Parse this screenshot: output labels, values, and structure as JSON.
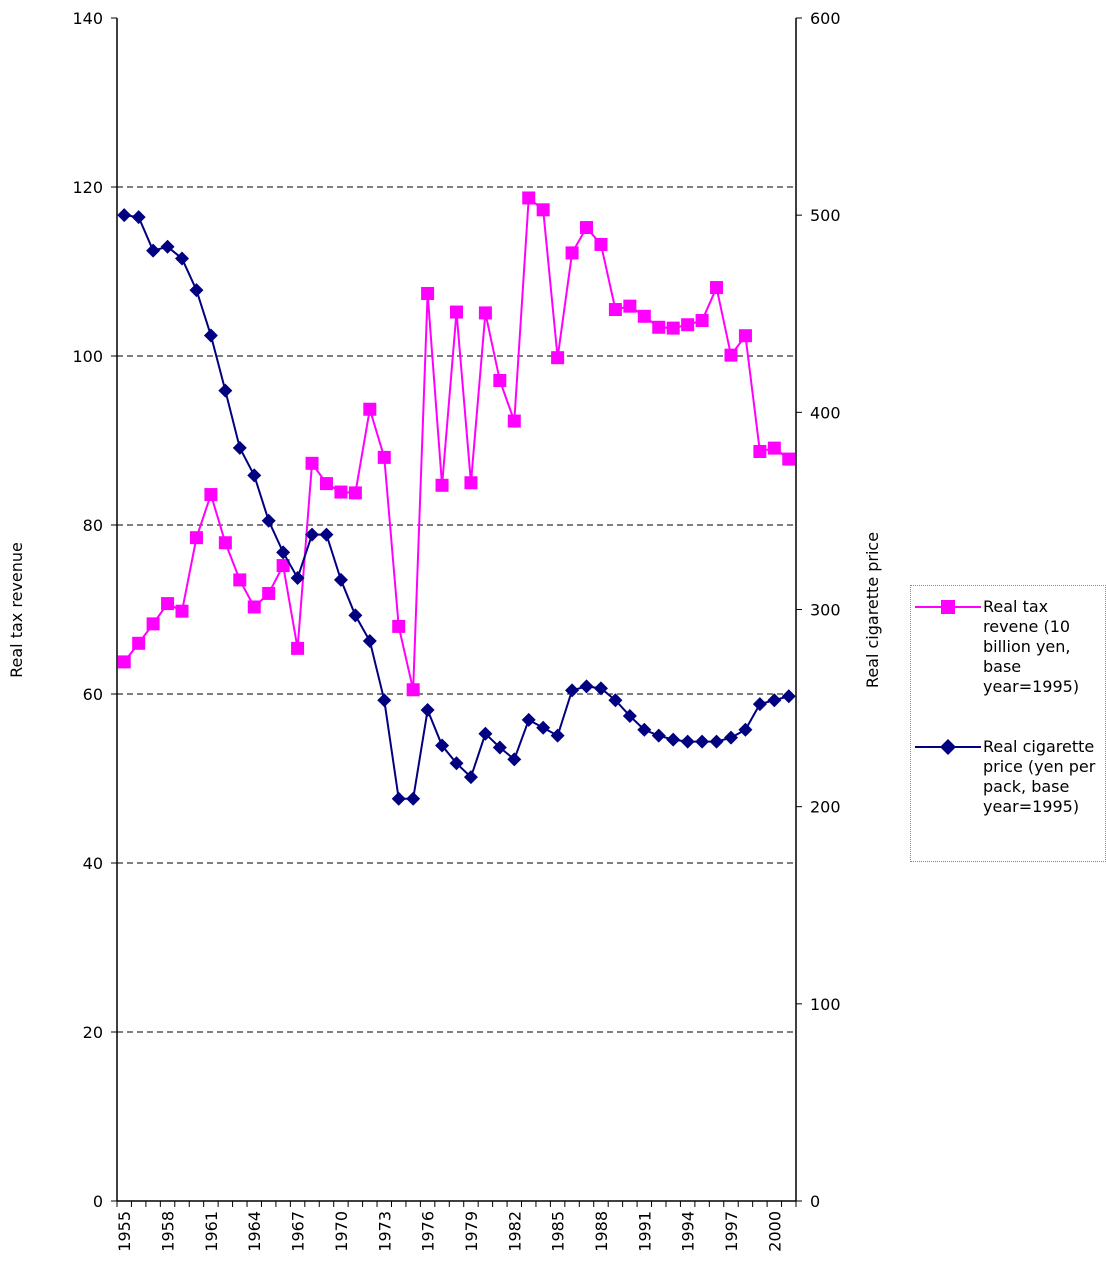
{
  "chart_data": {
    "type": "line",
    "x": [
      1955,
      1956,
      1957,
      1958,
      1959,
      1960,
      1961,
      1962,
      1963,
      1964,
      1965,
      1966,
      1967,
      1968,
      1969,
      1970,
      1971,
      1972,
      1973,
      1974,
      1975,
      1976,
      1977,
      1978,
      1979,
      1980,
      1981,
      1982,
      1983,
      1984,
      1985,
      1986,
      1987,
      1988,
      1989,
      1990,
      1991,
      1992,
      1993,
      1994,
      1995,
      1996,
      1997,
      1998,
      1999,
      2000,
      2001
    ],
    "x_tick_labels": [
      "1955",
      "1958",
      "1961",
      "1964",
      "1967",
      "1970",
      "1973",
      "1976",
      "1979",
      "1982",
      "1985",
      "1988",
      "1991",
      "1994",
      "1997",
      "2000"
    ],
    "ylabel_left": "Real tax revenue",
    "ylabel_right": "Real cigarette price",
    "ylim_left": [
      0,
      140
    ],
    "ylim_right": [
      0,
      600
    ],
    "yticks_left": [
      "0",
      "20",
      "40",
      "60",
      "80",
      "100",
      "120",
      "140"
    ],
    "yticks_right": [
      "0",
      "100",
      "200",
      "300",
      "400",
      "500",
      "600"
    ],
    "grid": "horizontal dashed",
    "legend_position": "right",
    "series": [
      {
        "name": "Real tax revene (10 billion yen, base year=1995)",
        "axis": "left",
        "color": "#ff00ff",
        "marker": "square",
        "values": [
          63.8,
          66,
          68.3,
          70.7,
          69.8,
          78.5,
          83.6,
          77.9,
          73.5,
          70.3,
          71.9,
          75.2,
          65.4,
          87.3,
          84.9,
          83.9,
          83.8,
          93.7,
          88,
          68,
          60.5,
          107.4,
          84.7,
          105.2,
          85,
          105.1,
          97.1,
          92.3,
          118.7,
          117.3,
          99.8,
          112.2,
          115.2,
          113.2,
          105.5,
          105.9,
          104.7,
          103.4,
          103.3,
          103.7,
          104.2,
          108.1,
          100.1,
          102.4,
          88.7,
          89.1,
          87.8
        ]
      },
      {
        "name": "Real cigarette price (yen per pack, base year=1995)",
        "axis": "right",
        "color": "#000080",
        "marker": "diamond",
        "values": [
          500,
          499,
          482,
          484,
          478,
          462,
          439,
          411,
          382,
          368,
          345,
          329,
          316,
          338,
          338,
          315,
          297,
          284,
          254,
          204,
          204,
          249,
          231,
          222,
          215,
          237,
          230,
          224,
          244,
          240,
          236,
          259,
          261,
          260,
          254,
          246,
          239,
          236,
          234,
          233,
          233,
          233,
          235,
          239,
          252,
          254,
          256
        ]
      }
    ]
  }
}
